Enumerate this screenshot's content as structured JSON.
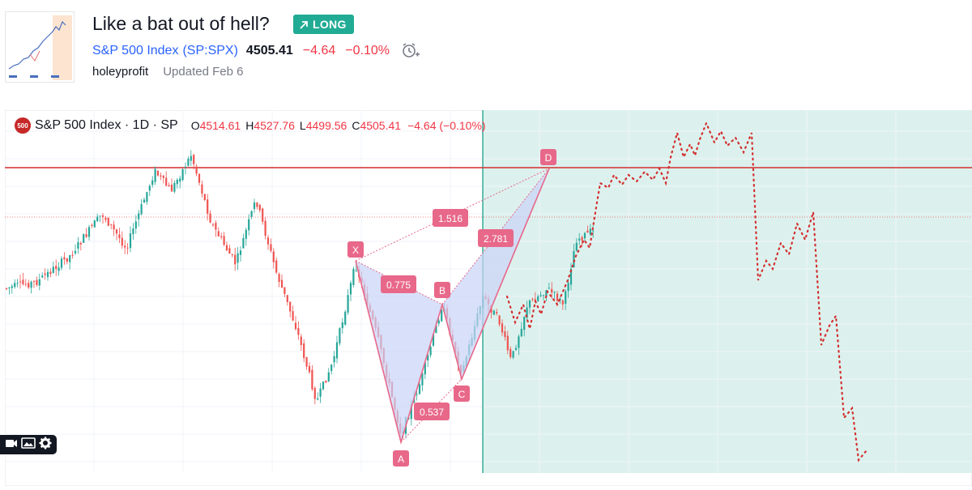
{
  "idea": {
    "title": "Like a bat out of hell?",
    "badge": "LONG",
    "symbol_name": "S&P 500 Index",
    "symbol_ticker": "(SP:SPX)",
    "price": "4505.41",
    "change": "−4.64",
    "change_pct": "−0.10%",
    "author": "holeyprofit",
    "updated": "Updated Feb 6"
  },
  "legend": {
    "logo_text": "500",
    "name": "S&P 500 Index · 1D · SP",
    "o_key": "O",
    "o_val": "4514.61",
    "h_key": "H",
    "h_val": "4527.76",
    "l_key": "L",
    "l_val": "4499.56",
    "c_key": "C",
    "c_val": "4505.41",
    "chg": "−4.64 (−0.10%)"
  },
  "pattern": {
    "points": [
      "X",
      "A",
      "B",
      "C",
      "D"
    ],
    "ratios": [
      "0.775",
      "0.537",
      "1.516",
      "2.781"
    ]
  },
  "toolbar": {
    "icons": [
      "camera-icon",
      "image-icon",
      "settings-icon"
    ]
  },
  "colors": {
    "long": "#22ab94",
    "down": "#f23645",
    "pattern_label": "#e8688a",
    "resistance": "#d32f2f",
    "projection_bg": "#d8f0ec"
  }
}
